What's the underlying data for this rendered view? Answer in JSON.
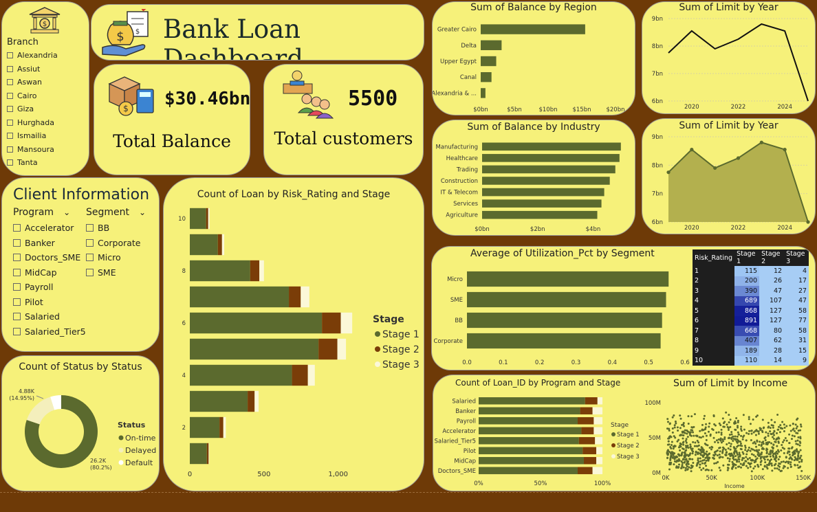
{
  "header": {
    "title": "Bank Loan Dashboard"
  },
  "kpis": {
    "balance_value": "$30.46bn",
    "balance_label": "Total Balance",
    "customers_value": "5500",
    "customers_label": "Total customers"
  },
  "branch": {
    "title": "Branch",
    "items": [
      "Alexandria",
      "Assiut",
      "Aswan",
      "Cairo",
      "Giza",
      "Hurghada",
      "Ismailia",
      "Mansoura",
      "Tanta"
    ]
  },
  "client": {
    "title": "Client Information",
    "program_title": "Program",
    "segment_title": "Segment",
    "programs": [
      "Accelerator",
      "Banker",
      "Doctors_SME",
      "MidCap",
      "Payroll",
      "Pilot",
      "Salaried",
      "Salaried_Tier5"
    ],
    "segments": [
      "BB",
      "Corporate",
      "Micro",
      "SME"
    ]
  },
  "colors": {
    "stage1": "#5b6a2e",
    "stage2": "#7a3d08",
    "stage3": "#fbf8d8",
    "panel": "#f6f17a",
    "background": "#6e3a07"
  },
  "region": {
    "title": "Sum of Balance by Region",
    "categories": [
      "Greater Cairo",
      "Delta",
      "Upper Egypt",
      "Canal",
      "Alexandria & ..."
    ],
    "values": [
      15.5,
      3.1,
      2.3,
      1.6,
      0.7
    ],
    "ticks": [
      "$0bn",
      "$5bn",
      "$10bn",
      "$15bn",
      "$20bn"
    ],
    "max": 20
  },
  "industry": {
    "title": "Sum of Balance by Industry",
    "categories": [
      "Manufacturing",
      "Healthcare",
      "Trading",
      "Construction",
      "IT & Telecom",
      "Services",
      "Agriculture"
    ],
    "values": [
      5.0,
      4.95,
      4.8,
      4.6,
      4.4,
      4.3,
      4.15
    ],
    "ticks": [
      "$0bn",
      "$2bn",
      "$4bn"
    ],
    "max": 5.5
  },
  "limit_line": {
    "title": "Sum of Limit by Year",
    "x": [
      2019,
      2020,
      2021,
      2022,
      2023,
      2024,
      2025
    ],
    "y": [
      7.75,
      8.55,
      7.9,
      8.25,
      8.8,
      8.55,
      6.0
    ],
    "yticks": [
      "9bn",
      "8bn",
      "7bn",
      "6bn"
    ],
    "xticks": [
      "2020",
      "2022",
      "2024"
    ]
  },
  "limit_area": {
    "title": "Sum of Limit by Year",
    "x": [
      2019,
      2020,
      2021,
      2022,
      2023,
      2024,
      2025
    ],
    "y": [
      7.75,
      8.55,
      7.9,
      8.25,
      8.8,
      8.55,
      6.0
    ],
    "yticks": [
      "9bn",
      "8bn",
      "7bn",
      "6bn"
    ],
    "xticks": [
      "2020",
      "2022",
      "2024"
    ]
  },
  "risk": {
    "title": "Count of Loan by Risk_Rating and Stage",
    "legend_title": "Stage",
    "legend": [
      "Stage 1",
      "Stage 2",
      "Stage 3"
    ],
    "ratings": [
      "10",
      "9",
      "8",
      "7",
      "6",
      "5",
      "4",
      "3",
      "2",
      "1"
    ],
    "y_tick_labels": [
      "10",
      "8",
      "6",
      "4",
      "2"
    ],
    "stage1": [
      110,
      189,
      407,
      668,
      891,
      868,
      689,
      390,
      200,
      115
    ],
    "stage2": [
      14,
      28,
      62,
      80,
      127,
      127,
      107,
      47,
      26,
      12
    ],
    "stage3": [
      9,
      15,
      31,
      58,
      77,
      58,
      47,
      27,
      17,
      4
    ],
    "xticks": [
      "0",
      "500",
      "1,000"
    ],
    "max": 1150
  },
  "status": {
    "title": "Count of Status by Status",
    "legend_title": "Status",
    "legend": [
      "On-time",
      "Delayed",
      "Default"
    ],
    "ontime": 80.2,
    "delayed": 14.95,
    "default": 4.85,
    "label_small_1": "4.88K",
    "label_small_2": "(14.95%)",
    "label_big_1": "26.2K",
    "label_big_2": "(80.2%)"
  },
  "util": {
    "title": "Average of Utilization_Pct by Segment",
    "categories": [
      "Micro",
      "SME",
      "BB",
      "Corporate"
    ],
    "values": [
      0.555,
      0.548,
      0.537,
      0.533
    ],
    "ticks": [
      "0.0",
      "0.1",
      "0.2",
      "0.3",
      "0.4",
      "0.5",
      "0.6"
    ],
    "max": 0.6
  },
  "matrix": {
    "headers": [
      "Risk_Rating",
      "Stage 1",
      "Stage 2",
      "Stage 3"
    ],
    "rows": [
      [
        "1",
        "115",
        "12",
        "4"
      ],
      [
        "2",
        "200",
        "26",
        "17"
      ],
      [
        "3",
        "390",
        "47",
        "27"
      ],
      [
        "4",
        "689",
        "107",
        "47"
      ],
      [
        "5",
        "868",
        "127",
        "58"
      ],
      [
        "6",
        "891",
        "127",
        "77"
      ],
      [
        "7",
        "668",
        "80",
        "58"
      ],
      [
        "8",
        "407",
        "62",
        "31"
      ],
      [
        "9",
        "189",
        "28",
        "15"
      ],
      [
        "10",
        "110",
        "14",
        "9"
      ]
    ]
  },
  "program_stage": {
    "title": "Count of Loan_ID by Program and Stage",
    "legend_title": "Stage",
    "legend": [
      "Stage 1",
      "Stage 2",
      "Stage 3"
    ],
    "categories": [
      "Salaried",
      "Banker",
      "Payroll",
      "Accelerator",
      "Salaried_Tier5",
      "Pilot",
      "MidCap",
      "Doctors_SME"
    ],
    "stage1": [
      86,
      82,
      80,
      83,
      81,
      84,
      85,
      80
    ],
    "stage2": [
      10,
      10,
      13,
      10,
      13,
      11,
      10,
      12
    ],
    "stage3": [
      4,
      8,
      7,
      7,
      6,
      5,
      5,
      8
    ],
    "ticks": [
      "0%",
      "50%",
      "100%"
    ]
  },
  "income": {
    "title": "Sum of Limit by Income",
    "xlabel": "Income",
    "xticks": [
      "0K",
      "50K",
      "100K",
      "150K"
    ],
    "yticks": [
      "100M",
      "50M",
      "0M"
    ]
  }
}
